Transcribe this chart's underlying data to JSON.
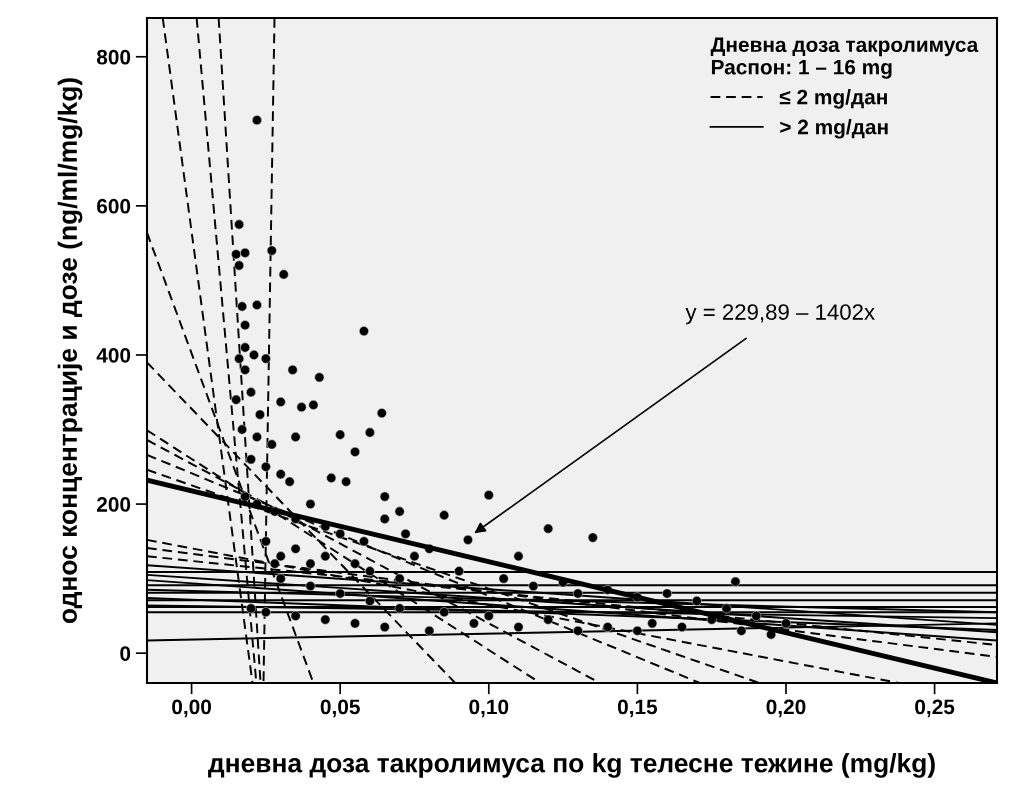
{
  "chart_data": {
    "type": "scatter",
    "xlabel": "дневна доза такролимуса по kg телесне тежине (mg/kg)",
    "ylabel": "однос концентрације и дозе (ng/ml/mg/kg)",
    "legend_title": "Дневна доза такролимуса\nРаспон: 1 – 16 mg",
    "xlim": [
      -0.015,
      0.271
    ],
    "ylim": [
      -40,
      852
    ],
    "xticks": [
      {
        "value": 0,
        "label": "0,00"
      },
      {
        "value": 0.05,
        "label": "0,05"
      },
      {
        "value": 0.1,
        "label": "0,10"
      },
      {
        "value": 0.15,
        "label": "0,15"
      },
      {
        "value": 0.2,
        "label": "0,20"
      },
      {
        "value": 0.25,
        "label": "0,25"
      }
    ],
    "yticks": [
      0,
      200,
      400,
      600,
      800
    ],
    "grid": false,
    "legend": "top right",
    "annotations": [
      "y = 229,89 – 1402x"
    ],
    "series": [
      {
        "color": "#000000",
        "marker": "circle",
        "x": [
          0.022,
          0.016,
          0.015,
          0.016,
          0.018,
          0.027,
          0.031,
          0.022,
          0.017,
          0.018,
          0.018,
          0.016,
          0.021,
          0.025,
          0.034,
          0.043,
          0.058,
          0.018,
          0.02,
          0.015,
          0.023,
          0.03,
          0.037,
          0.041,
          0.064,
          0.017,
          0.022,
          0.027,
          0.035,
          0.05,
          0.06,
          0.055,
          0.02,
          0.025,
          0.03,
          0.033,
          0.047,
          0.052,
          0.065,
          0.07,
          0.018,
          0.022,
          0.028,
          0.035,
          0.04,
          0.045,
          0.05,
          0.058,
          0.065,
          0.072,
          0.085,
          0.1,
          0.093,
          0.12,
          0.135,
          0.11,
          0.08,
          0.025,
          0.03,
          0.035,
          0.04,
          0.045,
          0.055,
          0.06,
          0.07,
          0.075,
          0.09,
          0.105,
          0.115,
          0.125,
          0.13,
          0.14,
          0.15,
          0.16,
          0.17,
          0.183,
          0.18,
          0.19,
          0.2,
          0.175,
          0.155,
          0.14,
          0.12,
          0.1,
          0.085,
          0.07,
          0.06,
          0.05,
          0.04,
          0.03,
          0.028,
          0.02,
          0.025,
          0.035,
          0.045,
          0.055,
          0.065,
          0.08,
          0.095,
          0.11,
          0.13,
          0.15,
          0.165,
          0.185,
          0.195
        ],
        "values": [
          715,
          575,
          535,
          520,
          537,
          540,
          508,
          467,
          465,
          440,
          410,
          395,
          400,
          395,
          380,
          370,
          432,
          380,
          350,
          340,
          320,
          337,
          330,
          333,
          322,
          300,
          290,
          280,
          290,
          293,
          296,
          270,
          260,
          250,
          240,
          230,
          235,
          230,
          210,
          190,
          210,
          200,
          190,
          180,
          200,
          170,
          160,
          150,
          180,
          160,
          185,
          212,
          152,
          167,
          155,
          130,
          140,
          150,
          130,
          140,
          120,
          130,
          120,
          110,
          100,
          130,
          110,
          100,
          90,
          95,
          80,
          85,
          75,
          80,
          70,
          96,
          60,
          50,
          40,
          45,
          40,
          35,
          45,
          50,
          55,
          60,
          70,
          80,
          90,
          100,
          120,
          60,
          55,
          50,
          45,
          40,
          35,
          30,
          40,
          35,
          30,
          30,
          35,
          30,
          25
        ]
      },
      {
        "type": "line",
        "name": "≤ 2 mg/дан",
        "color": "#000000",
        "line_style": "dashed",
        "x": [
          -0.0097,
          0.0205
        ],
        "values": [
          852,
          -40
        ]
      },
      {
        "type": "line",
        "color": "#000000",
        "line_style": "dashed",
        "x": [
          0.0017,
          0.0218
        ],
        "values": [
          852,
          -40
        ]
      },
      {
        "type": "line",
        "color": "#000000",
        "line_style": "dashed",
        "x": [
          0.0091,
          0.0232
        ],
        "values": [
          852,
          -40
        ]
      },
      {
        "type": "line",
        "color": "#000000",
        "line_style": "dashed",
        "x": [
          0.0279,
          0.0242
        ],
        "values": [
          852,
          -40
        ]
      },
      {
        "type": "line",
        "color": "#000000",
        "line_style": "dashed",
        "x": [
          -0.015,
          0.041
        ],
        "values": [
          564,
          -40
        ]
      },
      {
        "type": "line",
        "color": "#000000",
        "line_style": "dashed",
        "x": [
          -0.015,
          0.0887
        ],
        "values": [
          390,
          -40
        ]
      },
      {
        "type": "line",
        "color": "#000000",
        "line_style": "dashed",
        "x": [
          -0.015,
          0.1173
        ],
        "values": [
          299,
          -40
        ]
      },
      {
        "type": "line",
        "color": "#000000",
        "line_style": "dashed",
        "x": [
          -0.015,
          0.1374
        ],
        "values": [
          286,
          -40
        ]
      },
      {
        "type": "line",
        "color": "#000000",
        "line_style": "dashed",
        "x": [
          -0.015,
          0.171
        ],
        "values": [
          266,
          -40
        ]
      },
      {
        "type": "line",
        "color": "#000000",
        "line_style": "dashed",
        "x": [
          -0.015,
          0.191
        ],
        "values": [
          246,
          -40
        ]
      },
      {
        "type": "line",
        "color": "#000000",
        "line_style": "dashed",
        "x": [
          -0.015,
          0.238
        ],
        "values": [
          152,
          -40
        ]
      },
      {
        "type": "line",
        "color": "#000000",
        "line_style": "dashed",
        "x": [
          -0.015,
          0.271
        ],
        "values": [
          141,
          -5
        ]
      },
      {
        "type": "line",
        "color": "#000000",
        "line_style": "dashed",
        "x": [
          -0.015,
          0.271
        ],
        "values": [
          130,
          11
        ]
      },
      {
        "type": "line",
        "name": "> 2 mg/дан",
        "color": "#000000",
        "line_style": "solid",
        "x": [
          -0.015,
          0.271
        ],
        "values": [
          109,
          109
        ]
      },
      {
        "type": "line",
        "color": "#000000",
        "line_style": "solid",
        "x": [
          -0.015,
          0.271
        ],
        "values": [
          91,
          91
        ]
      },
      {
        "type": "line",
        "color": "#000000",
        "line_style": "solid",
        "x": [
          -0.015,
          0.271
        ],
        "values": [
          81,
          81
        ]
      },
      {
        "type": "line",
        "color": "#000000",
        "line_style": "solid",
        "x": [
          -0.015,
          0.271
        ],
        "values": [
          71,
          71
        ]
      },
      {
        "type": "line",
        "color": "#000000",
        "line_style": "solid",
        "x": [
          -0.015,
          0.271
        ],
        "values": [
          62,
          62
        ]
      },
      {
        "type": "line",
        "color": "#000000",
        "line_style": "solid",
        "x": [
          -0.015,
          0.271
        ],
        "values": [
          55,
          55
        ]
      },
      {
        "type": "line",
        "color": "#000000",
        "line_style": "solid",
        "x": [
          -0.015,
          0.271
        ],
        "values": [
          118,
          38
        ]
      },
      {
        "type": "line",
        "color": "#000000",
        "line_style": "solid",
        "x": [
          -0.015,
          0.271
        ],
        "values": [
          105,
          28
        ]
      },
      {
        "type": "line",
        "color": "#000000",
        "line_style": "solid",
        "x": [
          -0.015,
          0.271
        ],
        "values": [
          98,
          17
        ]
      },
      {
        "type": "line",
        "color": "#000000",
        "line_style": "solid",
        "x": [
          -0.015,
          0.271
        ],
        "values": [
          85,
          55
        ]
      },
      {
        "type": "line",
        "color": "#000000",
        "line_style": "solid",
        "x": [
          -0.015,
          0.271
        ],
        "values": [
          17,
          40
        ]
      },
      {
        "type": "line",
        "color": "#000000",
        "line_style": "solid",
        "x": [
          -0.015,
          0.271
        ],
        "values": [
          74,
          31
        ]
      },
      {
        "type": "line",
        "color": "#000000",
        "line_style": "solid",
        "x": [
          -0.015,
          0.271
        ],
        "values": [
          64,
          47
        ]
      },
      {
        "type": "line",
        "color": "#000000",
        "line_style": "solid",
        "x": [
          -0.015,
          0.271
        ],
        "values": [
          232,
          -40
        ]
      }
    ]
  }
}
